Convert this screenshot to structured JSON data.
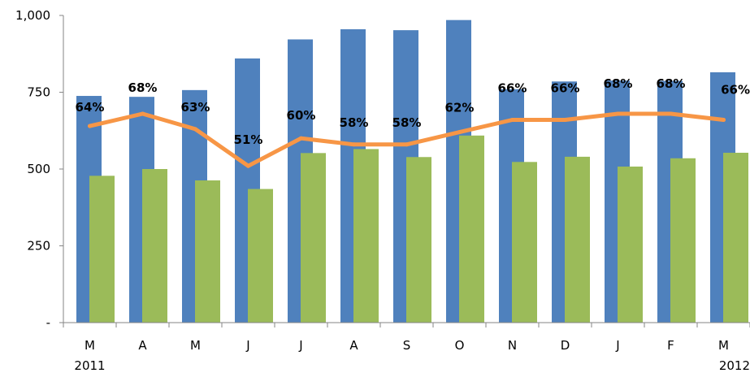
{
  "chart_data": {
    "type": "bar",
    "categories": [
      "M",
      "A",
      "M",
      "J",
      "J",
      "A",
      "S",
      "O",
      "N",
      "D",
      "J",
      "F",
      "M"
    ],
    "year_labels": [
      "2011",
      "",
      "",
      "",
      "",
      "",
      "",
      "",
      "",
      "",
      "",
      "",
      "2012"
    ],
    "series": [
      {
        "type": "bar",
        "color": "#4F81BD",
        "values": [
          738,
          735,
          757,
          860,
          922,
          955,
          952,
          985,
          760,
          785,
          788,
          787,
          815
        ]
      },
      {
        "type": "bar",
        "color": "#9BBB59",
        "values": [
          478,
          500,
          463,
          435,
          552,
          565,
          539,
          609,
          523,
          540,
          508,
          535,
          553
        ]
      },
      {
        "type": "line",
        "color": "#F79646",
        "values": [
          64,
          68,
          63,
          51,
          60,
          58,
          58,
          62,
          66,
          66,
          68,
          68,
          66
        ],
        "labels": [
          "64%",
          "68%",
          "63%",
          "51%",
          "60%",
          "58%",
          "58%",
          "62%",
          "66%",
          "66%",
          "68%",
          "68%",
          "66%"
        ]
      }
    ],
    "y_axis": {
      "min": 0,
      "max": 1000,
      "ticks": [
        0,
        250,
        500,
        750,
        1000
      ],
      "tick_labels": [
        "-",
        "250",
        "500",
        "750",
        "1,000"
      ]
    },
    "grid": false,
    "legend": "none"
  }
}
